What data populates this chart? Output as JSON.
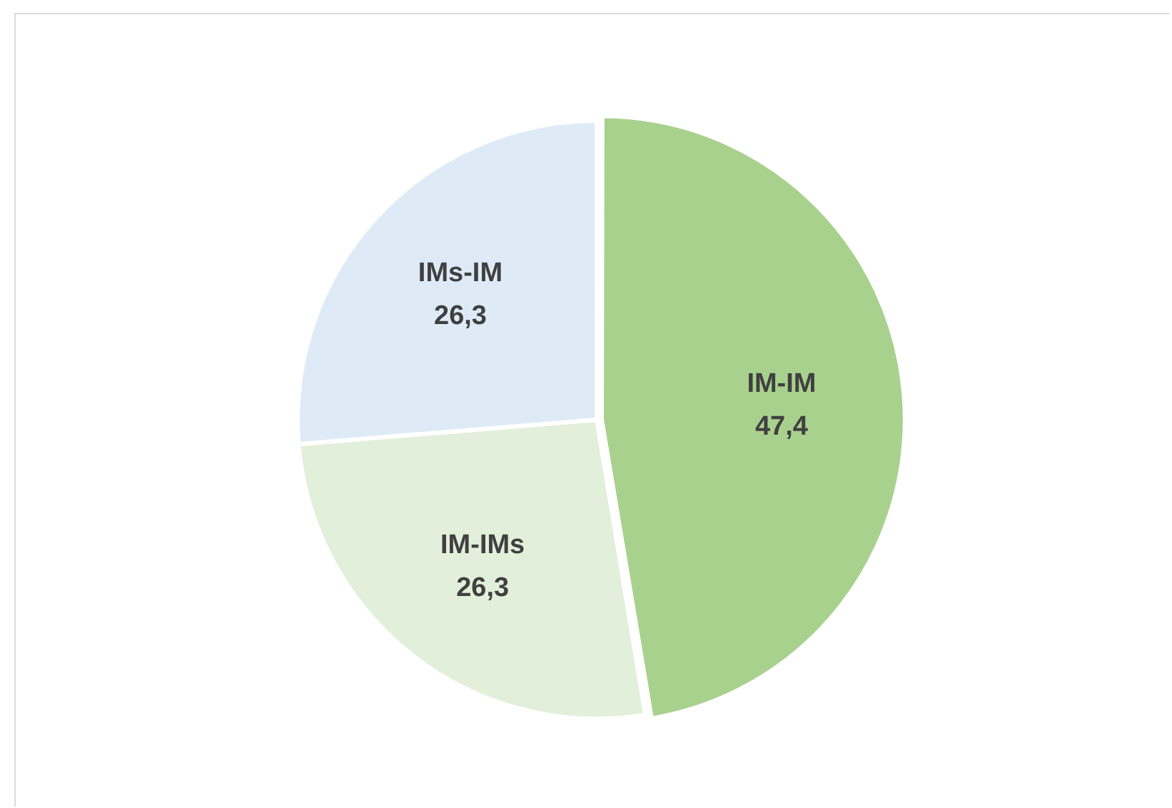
{
  "chart_data": {
    "type": "pie",
    "categories": [
      "IM-IM",
      "IM-IMs",
      "IMs-IM"
    ],
    "values": [
      47.4,
      26.3,
      26.3
    ],
    "value_labels": [
      "47,4",
      "26,3",
      "26,3"
    ],
    "colors": [
      "#a9d18e",
      "#e2efda",
      "#deebf7"
    ],
    "legend": false
  }
}
